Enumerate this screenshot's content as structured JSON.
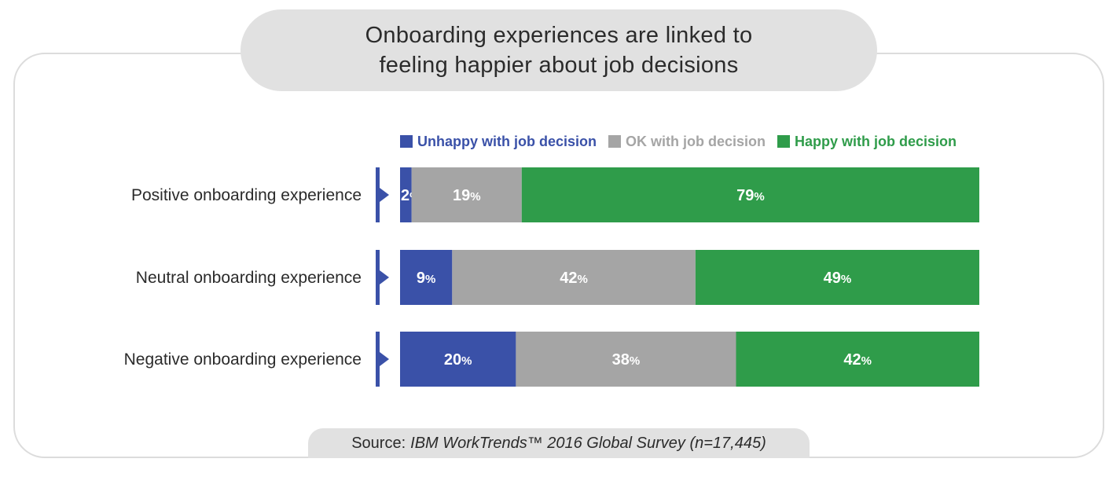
{
  "title_lines": [
    "Onboarding experiences are linked to",
    "feeling happier about job decisions"
  ],
  "source": {
    "label": "Source:",
    "text": "IBM WorkTrends™ 2016 Global Survey (n=17,445)"
  },
  "colors": {
    "unhappy": "#3a51a8",
    "ok": "#a5a5a5",
    "happy": "#2f9c4a",
    "marker": "#3a51a8"
  },
  "chart_data": {
    "type": "bar",
    "orientation": "horizontal",
    "stacked": true,
    "percent": true,
    "title": "Onboarding experiences are linked to feeling happier about job decisions",
    "categories": [
      "Positive onboarding experience",
      "Neutral onboarding experience",
      "Negative onboarding experience"
    ],
    "series": [
      {
        "name": "Unhappy with job decision",
        "values": [
          2,
          9,
          20
        ],
        "labels": [
          "2%",
          "9%",
          "20%"
        ]
      },
      {
        "name": "OK with job decision",
        "values": [
          19,
          42,
          38
        ],
        "labels": [
          "19%",
          "42%",
          "38%"
        ]
      },
      {
        "name": "Happy with job decision",
        "values": [
          79,
          49,
          42
        ],
        "labels": [
          "79%",
          "49%",
          "42%"
        ]
      }
    ],
    "xlim": [
      0,
      100
    ],
    "legend": "top",
    "grid": false
  }
}
